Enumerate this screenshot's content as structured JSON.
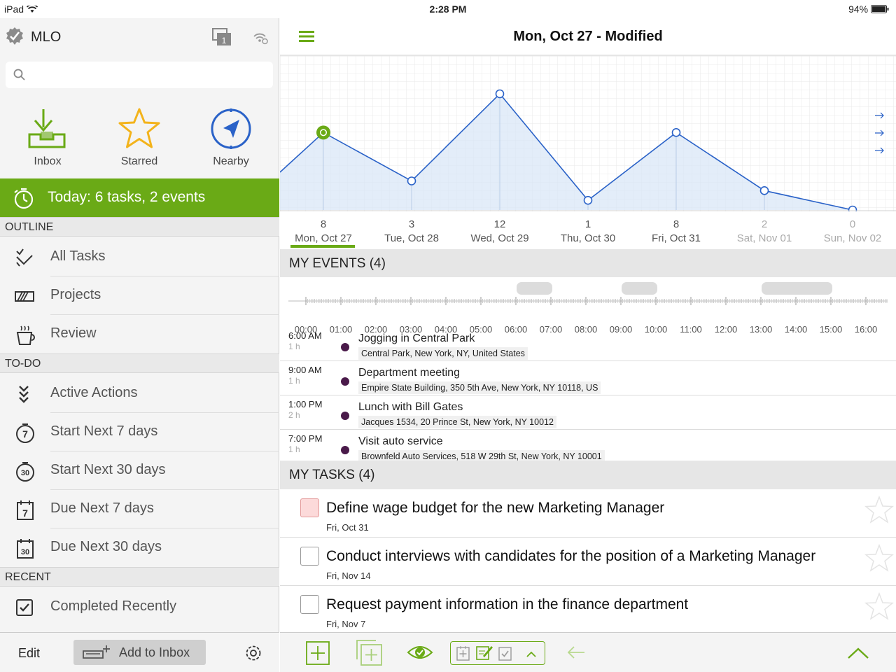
{
  "status_bar": {
    "device": "iPad",
    "time": "2:28 PM",
    "battery": "94%"
  },
  "sidebar": {
    "app_name": "MLO",
    "badge_count": "1",
    "search_placeholder": "",
    "quick": [
      {
        "label": "Inbox",
        "icon": "inbox-icon"
      },
      {
        "label": "Starred",
        "icon": "star-icon"
      },
      {
        "label": "Nearby",
        "icon": "compass-icon"
      }
    ],
    "today": "Today: 6 tasks, 2 events",
    "sections": {
      "outline": "OUTLINE",
      "todo": "TO-DO",
      "recent": "RECENT"
    },
    "outline_items": [
      {
        "label": "All Tasks",
        "icon": "all-tasks-icon"
      },
      {
        "label": "Projects",
        "icon": "projects-icon"
      },
      {
        "label": "Review",
        "icon": "review-cup-icon"
      }
    ],
    "todo_items": [
      {
        "label": "Active Actions",
        "icon": "active-actions-icon"
      },
      {
        "label": "Start Next 7 days",
        "icon": "start-7-icon",
        "num": "7"
      },
      {
        "label": "Start Next 30 days",
        "icon": "start-30-icon",
        "num": "30"
      },
      {
        "label": "Due Next 7 days",
        "icon": "due-7-icon",
        "num": "7"
      },
      {
        "label": "Due Next 30 days",
        "icon": "due-30-icon",
        "num": "30"
      }
    ],
    "recent_items": [
      {
        "label": "Completed Recently",
        "icon": "checkbox-checked-icon"
      }
    ],
    "footer": {
      "edit": "Edit",
      "add_to_inbox": "Add to Inbox"
    }
  },
  "main": {
    "title": "Mon, Oct 27 - Modified",
    "accent": "#6aaa16",
    "line_color": "#2a62c8",
    "days": [
      {
        "count": "8",
        "label": "Mon, Oct 27",
        "selected": true,
        "weekend": false
      },
      {
        "count": "3",
        "label": "Tue, Oct 28",
        "selected": false,
        "weekend": false
      },
      {
        "count": "12",
        "label": "Wed, Oct 29",
        "selected": false,
        "weekend": false
      },
      {
        "count": "1",
        "label": "Thu, Oct 30",
        "selected": false,
        "weekend": false
      },
      {
        "count": "8",
        "label": "Fri, Oct 31",
        "selected": false,
        "weekend": false
      },
      {
        "count": "2",
        "label": "Sat, Nov 01",
        "selected": false,
        "weekend": true
      },
      {
        "count": "0",
        "label": "Sun, Nov 02",
        "selected": false,
        "weekend": true
      }
    ],
    "events_header": "MY EVENTS (4)",
    "timeline_ticks": [
      "00:00",
      "01:00",
      "02:00",
      "03:00",
      "04:00",
      "05:00",
      "06:00",
      "07:00",
      "08:00",
      "09:00",
      "10:00",
      "11:00",
      "12:00",
      "13:00",
      "14:00",
      "15:00",
      "16:00"
    ],
    "events": [
      {
        "time": "6:00 AM",
        "duration": "1 h",
        "name": "Jogging in Central Park",
        "location": "Central Park, New York, NY, United States"
      },
      {
        "time": "9:00 AM",
        "duration": "1 h",
        "name": "Department meeting",
        "location": "Empire State Building, 350 5th Ave, New York, NY 10118, US"
      },
      {
        "time": "1:00 PM",
        "duration": "2 h",
        "name": "Lunch with Bill Gates",
        "location": "Jacques 1534, 20 Prince St, New York, NY 10012"
      },
      {
        "time": "7:00 PM",
        "duration": "1 h",
        "name": "Visit auto service",
        "location": "Brownfeld Auto Services, 518 W 29th St, New York, NY 10001"
      }
    ],
    "tasks_header": "MY TASKS (4)",
    "tasks": [
      {
        "title": "Define wage budget for the new Marketing Manager",
        "date": "Fri, Oct 31",
        "overdue": true
      },
      {
        "title": "Conduct interviews with candidates for the position of a Marketing Manager",
        "date": "Fri, Nov 14",
        "overdue": false
      },
      {
        "title": "Request payment information in the finance department",
        "date": "Fri, Nov 7",
        "overdue": false
      }
    ]
  },
  "chart_data": {
    "type": "line",
    "categories": [
      "Mon, Oct 27",
      "Tue, Oct 28",
      "Wed, Oct 29",
      "Thu, Oct 30",
      "Fri, Oct 31",
      "Sat, Nov 01",
      "Sun, Nov 02"
    ],
    "values": [
      8,
      3,
      12,
      1,
      8,
      2,
      0
    ],
    "ylim": [
      0,
      12
    ],
    "grid": true
  }
}
